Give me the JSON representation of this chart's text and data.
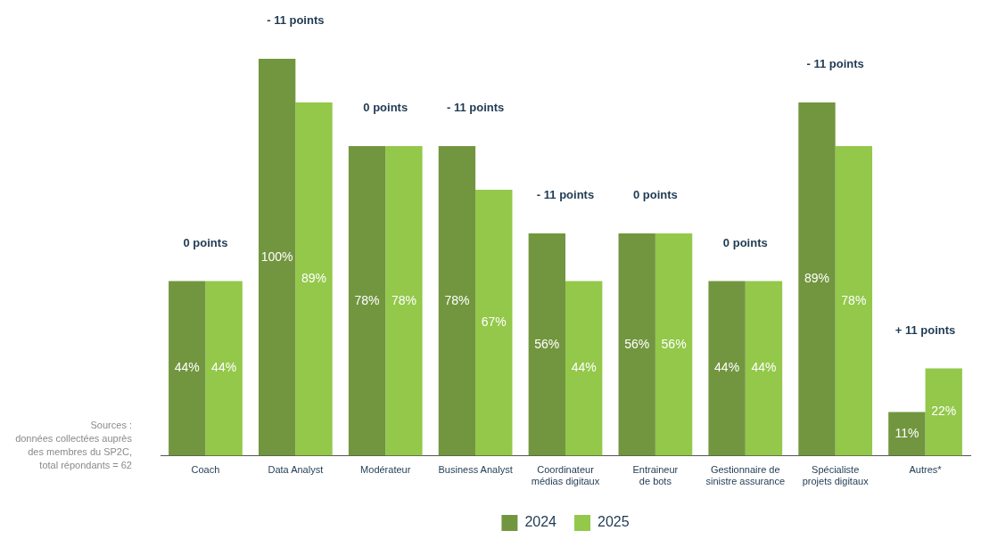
{
  "chart_data": {
    "type": "bar",
    "categories": [
      "Coach",
      "Data Analyst",
      "Modérateur",
      "Business Analyst",
      "Coordinateur médias digitaux",
      "Entraineur de bots",
      "Gestionnaire de sinistre assurance",
      "Spécialiste projets digitaux",
      "Autres*"
    ],
    "series": [
      {
        "name": "2024",
        "color": "#72963f",
        "values": [
          44,
          100,
          78,
          78,
          56,
          56,
          44,
          89,
          11
        ],
        "value_labels": [
          "44%",
          "100%",
          "78%",
          "78%",
          "56%",
          "56%",
          "44%",
          "89%",
          "11%"
        ]
      },
      {
        "name": "2025",
        "color": "#93c84a",
        "values": [
          44,
          89,
          78,
          67,
          44,
          56,
          44,
          78,
          22
        ],
        "value_labels": [
          "44%",
          "89%",
          "78%",
          "67%",
          "44%",
          "56%",
          "44%",
          "78%",
          "22%"
        ]
      }
    ],
    "ylim": [
      0,
      100
    ],
    "tick_labels": "x",
    "grid": false,
    "legend": "bottom",
    "annotations": [
      "0 points",
      "- 11 points",
      "0 points",
      "- 11 points",
      "- 11 points",
      "0 points",
      "0 points",
      "- 11 points",
      "+ 11 points",
      "Sources :\ndonnées collectées auprès\ndes membres du SP2C,\ntotal répondants = 62"
    ]
  }
}
